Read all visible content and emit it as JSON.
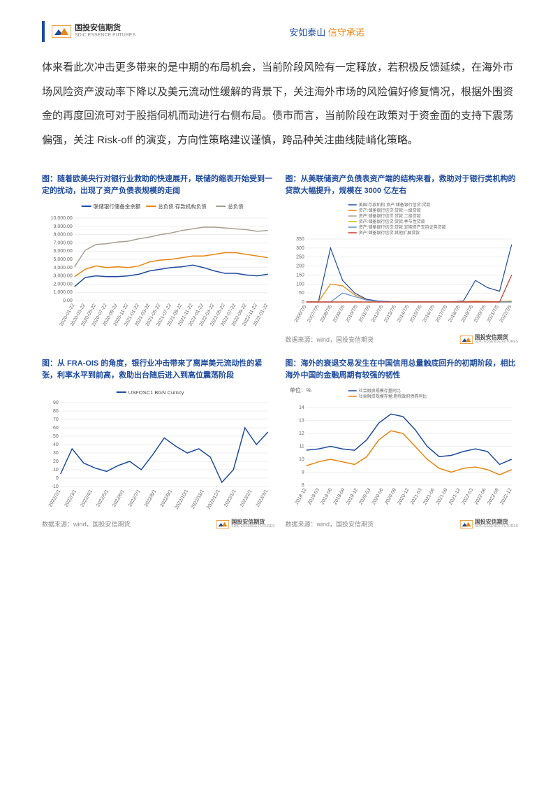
{
  "header": {
    "company_zh": "国投安信期货",
    "company_en": "SDIC ESSENCE FUTURES",
    "tagline_blue": "安如泰山",
    "tagline_orange": "信守承诺"
  },
  "body_text": "体来看此次冲击更多带来的是中期的布局机会，当前阶段风险有一定释放，若积极反馈延续，在海外市场风险资产波动率下降以及美元流动性缓解的背景下，关注海外市场的风险偏好修复情况，根据外围资金的再度回流可对于股指伺机而动进行右侧布局。债市而言，当前阶段在政策对于资金面的支持下震荡偏强，关注 Risk-off 的演变，方向性策略建议谨慎，跨品种关注曲线陡峭化策略。",
  "chart1": {
    "title": "图：随着欧美央行对银行业救助的快速展开，联储的缩表开始受到一定的扰动，出现了资产负债表规模的走阔",
    "type": "line",
    "legend": [
      "联储银行储备金余额",
      "总负债:存款机构负债",
      "总负债"
    ],
    "legend_colors": [
      "#1e4b9e",
      "#e8850e",
      "#a8a090"
    ],
    "y_ticks": [
      "0.00",
      "1,000.00",
      "2,000.00",
      "3,000.00",
      "4,000.00",
      "5,000.00",
      "6,000.00",
      "7,000.00",
      "8,000.00",
      "9,000.00",
      "10,000.00"
    ],
    "ylim": [
      0,
      10000
    ],
    "x_labels": [
      "2020-01-22",
      "2020-03-22",
      "2020-05-22",
      "2020-07-22",
      "2020-09-22",
      "2020-11-22",
      "2021-01-22",
      "2021-03-22",
      "2021-05-22",
      "2021-07-22",
      "2021-09-22",
      "2021-11-22",
      "2022-01-22",
      "2022-03-22",
      "2022-05-22",
      "2022-07-22",
      "2022-09-22",
      "2022-11-22",
      "2023-01-22"
    ],
    "series": {
      "reserves": [
        1700,
        2800,
        3000,
        2900,
        2900,
        3000,
        3200,
        3600,
        3800,
        4000,
        4100,
        4300,
        4000,
        3600,
        3300,
        3300,
        3100,
        3000,
        3200
      ],
      "deposit_liab": [
        2900,
        3800,
        4200,
        4000,
        4100,
        4000,
        4200,
        4700,
        4900,
        5000,
        5200,
        5400,
        5400,
        5600,
        5800,
        5800,
        5600,
        5400,
        5200
      ],
      "total_liab": [
        4100,
        6100,
        6800,
        6900,
        7100,
        7200,
        7500,
        7700,
        8000,
        8200,
        8500,
        8700,
        8900,
        8900,
        8800,
        8700,
        8600,
        8400,
        8500
      ]
    },
    "grid_color": "#dddddd",
    "background_color": "#ffffff",
    "line_width": 1.5,
    "axis_fontsize": 7
  },
  "chart2": {
    "title": "图：从美联储资产负债表资产端的结构来看，救助对于银行类机构的贷款大幅提升，规模在 3000 亿左右",
    "type": "line",
    "legend": [
      "美国:存款机构:资产:储备银行信贷:贷款",
      "资产:储备银行信贷:贷款:一级贷款",
      "资产:储备银行信贷:贷款:二级贷款",
      "资产:储备银行信贷:贷款:季节性贷款",
      "资产:储备银行信贷:贷款:定期资产支持证券贷款",
      "资产:储备银行信贷:其他扩展贷款"
    ],
    "legend_colors": [
      "#1e4b9e",
      "#e8850e",
      "#a8a090",
      "#d4b800",
      "#5a8fcc",
      "#cc3333"
    ],
    "y_ticks": [
      "0",
      "50",
      "100",
      "150",
      "200",
      "250",
      "300",
      "350"
    ],
    "ylim": [
      0,
      350
    ],
    "x_labels": [
      "2006/7/5",
      "2007/7/5",
      "2008/7/5",
      "2009/7/5",
      "2010/7/5",
      "2011/7/5",
      "2012/7/5",
      "2013/7/5",
      "2014/7/5",
      "2015/7/5",
      "2016/7/5",
      "2017/7/5",
      "2018/7/5",
      "2019/7/5",
      "2020/7/5",
      "2021/7/5",
      "2022/7/5"
    ],
    "series": {
      "s1": [
        0,
        2,
        300,
        120,
        50,
        15,
        5,
        2,
        1,
        1,
        1,
        1,
        1,
        5,
        120,
        80,
        60,
        320
      ],
      "s2": [
        0,
        2,
        100,
        90,
        40,
        10,
        3,
        1,
        1,
        1,
        1,
        1,
        1,
        2,
        5,
        3,
        2,
        5
      ],
      "s3": [
        0,
        0,
        0,
        0,
        0,
        0,
        0,
        0,
        0,
        0,
        0,
        0,
        0,
        0,
        0,
        0,
        0,
        0
      ],
      "s4": [
        0,
        0,
        0,
        0,
        0,
        0,
        0,
        0,
        0,
        0,
        0,
        0,
        0,
        0,
        0,
        0,
        0,
        0
      ],
      "s5": [
        0,
        0,
        0,
        50,
        30,
        10,
        5,
        2,
        1,
        0,
        0,
        0,
        0,
        0,
        0,
        0,
        0,
        0
      ],
      "s6": [
        0,
        0,
        0,
        0,
        0,
        0,
        0,
        0,
        0,
        0,
        0,
        0,
        0,
        0,
        0,
        0,
        0,
        150
      ]
    },
    "grid_color": "#dddddd",
    "line_width": 1.2,
    "axis_fontsize": 7,
    "source": "数据来源：wind，国投安信期货"
  },
  "chart3": {
    "title": "图：从 FRA-OIS 的角度，银行业冲击带来了离岸美元流动性的紧张，利率水平到前高，救助出台随后进入到高位震荡阶段",
    "type": "line",
    "legend": [
      "USFOSC1 BGN Curncy"
    ],
    "legend_colors": [
      "#1e4b9e"
    ],
    "y_ticks": [
      "-10",
      "0",
      "10",
      "20",
      "30",
      "40",
      "50",
      "60",
      "70",
      "80",
      "90"
    ],
    "ylim": [
      -10,
      90
    ],
    "x_labels": [
      "2022/2/1",
      "2022/3/1",
      "2022/4/1",
      "2022/5/1",
      "2022/6/1",
      "2022/7/1",
      "2022/8/1",
      "2022/9/1",
      "2022/10/1",
      "2022/11/1",
      "2022/12/1",
      "2023/1/1",
      "2023/2/1",
      "2023/3/1"
    ],
    "series": {
      "fra_ois": [
        5,
        35,
        18,
        12,
        8,
        15,
        20,
        10,
        28,
        48,
        38,
        30,
        35,
        25,
        -5,
        10,
        60,
        40,
        55
      ]
    },
    "grid_color": "#dddddd",
    "line_width": 1.5,
    "axis_fontsize": 7,
    "source": "数据来源：wind，国投安信期货"
  },
  "chart4": {
    "title": "图：海外的衰退交易发生在中国信用总量触底回升的初期阶段，相比海外中国的金融周期有较强的韧性",
    "type": "line",
    "y_unit": "单位：%",
    "legend": [
      "社会融资规模存量同比",
      "社会融资规模存量:剔除政府债券同比"
    ],
    "legend_colors": [
      "#1e4b9e",
      "#e8850e"
    ],
    "y_ticks": [
      "8",
      "9",
      "10",
      "11",
      "12",
      "13",
      "14"
    ],
    "ylim": [
      8,
      14
    ],
    "x_labels": [
      "2018-12",
      "2019-03",
      "2019-06",
      "2019-09",
      "2019-12",
      "2020-03",
      "2020-06",
      "2020-09",
      "2020-12",
      "2021-03",
      "2021-06",
      "2021-09",
      "2021-12",
      "2022-03",
      "2022-06",
      "2022-09",
      "2022-12"
    ],
    "series": {
      "tsf": [
        10.7,
        10.8,
        11.0,
        10.8,
        10.7,
        11.5,
        12.8,
        13.5,
        13.3,
        12.3,
        11.0,
        10.2,
        10.3,
        10.6,
        10.8,
        10.6,
        9.6,
        10.0
      ],
      "tsf_ex": [
        9.5,
        9.8,
        10.0,
        9.8,
        9.6,
        10.2,
        11.5,
        12.2,
        12.0,
        11.0,
        10.0,
        9.3,
        9.0,
        9.3,
        9.4,
        9.2,
        8.8,
        9.2
      ]
    },
    "grid_color": "#dddddd",
    "line_width": 1.5,
    "axis_fontsize": 7,
    "source": "数据来源：wind，国投安信期货"
  }
}
